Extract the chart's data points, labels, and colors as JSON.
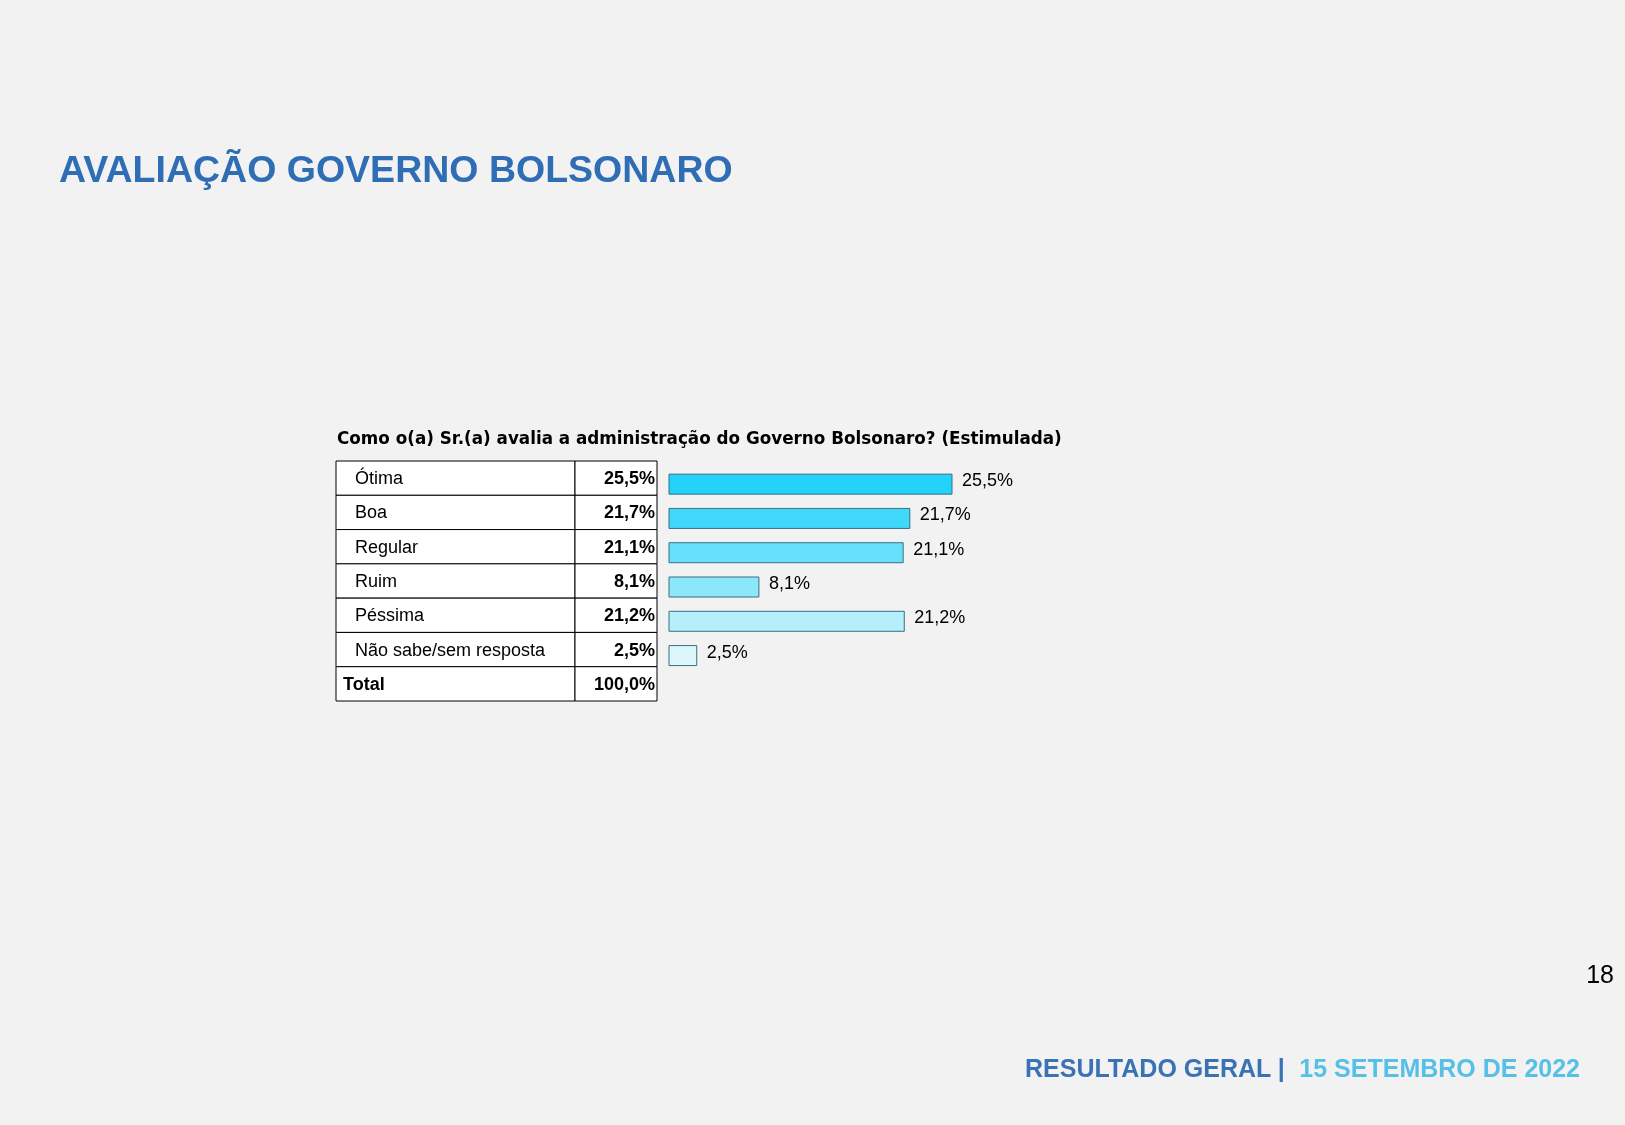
{
  "chart_data": {
    "type": "bar",
    "orientation": "horizontal",
    "title": "AVALIAÇÃO GOVERNO BOLSONARO",
    "subtitle": "Como o(a) Sr.(a) avalia a administração do Governo Bolsonaro? (Estimulada)",
    "categories": [
      "Ótima",
      "Boa",
      "Regular",
      "Ruim",
      "Péssima",
      "Não sabe/sem resposta"
    ],
    "values": [
      25.5,
      21.7,
      21.1,
      8.1,
      21.2,
      2.5
    ],
    "colors": [
      "#22d2fb",
      "#3fd7fa",
      "#66e0fb",
      "#8de7fb",
      "#b4effb",
      "#dbf7fc"
    ],
    "value_labels": [
      "25,5%",
      "21,7%",
      "21,1%",
      "8,1%",
      "21,2%",
      "2,5%"
    ],
    "annotations": [
      "Total",
      "100,0%",
      "RESULTADO GERAL |",
      "15  SETEMBRO DE 2022",
      "18"
    ]
  }
}
